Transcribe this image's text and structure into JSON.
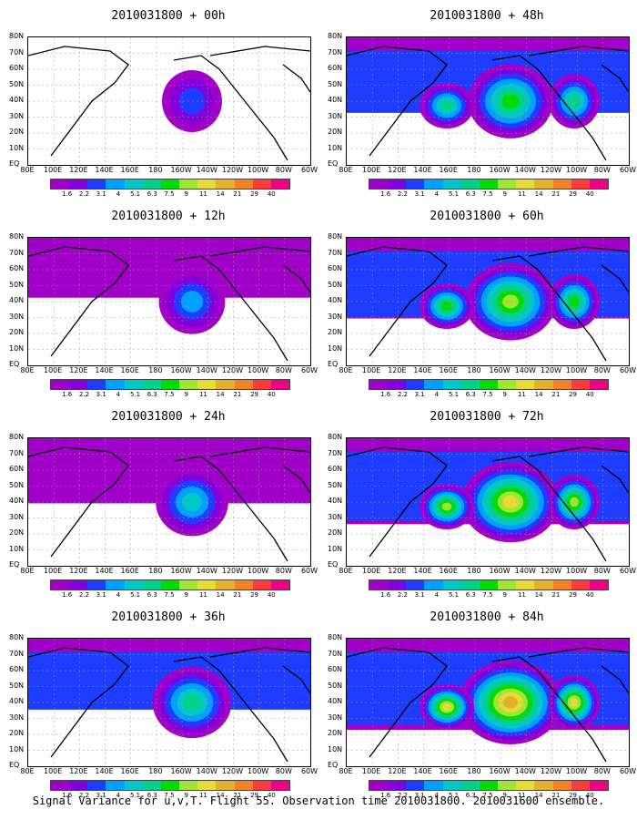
{
  "chart_data": [
    {
      "type": "heatmap",
      "title": "2010031800 + 00h",
      "lead_hours": 0
    },
    {
      "type": "heatmap",
      "title": "2010031800 + 48h",
      "lead_hours": 48
    },
    {
      "type": "heatmap",
      "title": "2010031800 + 12h",
      "lead_hours": 12
    },
    {
      "type": "heatmap",
      "title": "2010031800 + 60h",
      "lead_hours": 60
    },
    {
      "type": "heatmap",
      "title": "2010031800 + 24h",
      "lead_hours": 24
    },
    {
      "type": "heatmap",
      "title": "2010031800 + 72h",
      "lead_hours": 72
    },
    {
      "type": "heatmap",
      "title": "2010031800 + 36h",
      "lead_hours": 36
    },
    {
      "type": "heatmap",
      "title": "2010031800 + 84h",
      "lead_hours": 84
    }
  ],
  "x_ticks": [
    "80E",
    "100E",
    "120E",
    "140E",
    "160E",
    "180",
    "160W",
    "140W",
    "120W",
    "100W",
    "80W",
    "60W"
  ],
  "y_ticks": [
    "80N",
    "70N",
    "60N",
    "50N",
    "40N",
    "30N",
    "20N",
    "10N",
    "EQ"
  ],
  "colorbar": {
    "levels": [
      "1.6",
      "2.2",
      "3.1",
      "4",
      "5.1",
      "6.3",
      "7.5",
      "9",
      "11",
      "14",
      "21",
      "29",
      "40"
    ],
    "colors": [
      "#a000c8",
      "#8200dc",
      "#1e3cff",
      "#00a0ff",
      "#00c8c8",
      "#00d28c",
      "#00dc00",
      "#a0e632",
      "#e6dc32",
      "#e6af2d",
      "#f08228",
      "#fa3c3c",
      "#f00082"
    ]
  },
  "caption": "Signal Variance for u,v,T. Flight 55. Observation time 2010031800. 2010031600 ensemble."
}
